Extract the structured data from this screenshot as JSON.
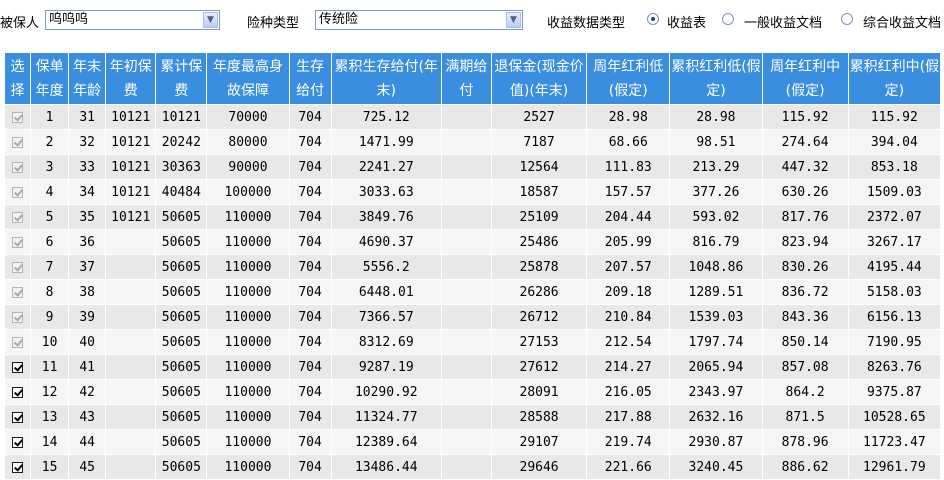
{
  "filters": {
    "insured_label": "被保人",
    "insured_value": "呜呜呜",
    "insurance_type_label": "险种类型",
    "insurance_type_value": "传统险",
    "data_type_label": "收益数据类型",
    "options": [
      {
        "label": "收益表",
        "checked": true
      },
      {
        "label": "一般收益文档",
        "checked": false
      },
      {
        "label": "综合收益文档",
        "checked": false
      }
    ]
  },
  "table": {
    "headers": [
      "选择",
      "保单年度",
      "年末年龄",
      "年初保费",
      "累计保费",
      "年度最高身故保障",
      "生存给付",
      "累积生存给付(年末)",
      "满期给付",
      "退保金(现金价值)(年末)",
      "周年红利低(假定)",
      "累积红利低(假定)",
      "周年红利中(假定)",
      "累积红利中(假定)"
    ],
    "rows": [
      {
        "enabled": false,
        "cells": [
          "1",
          "31",
          "10121",
          "10121",
          "70000",
          "704",
          "725.12",
          "",
          "2527",
          "28.98",
          "28.98",
          "115.92",
          "115.92"
        ]
      },
      {
        "enabled": false,
        "cells": [
          "2",
          "32",
          "10121",
          "20242",
          "80000",
          "704",
          "1471.99",
          "",
          "7187",
          "68.66",
          "98.51",
          "274.64",
          "394.04"
        ]
      },
      {
        "enabled": false,
        "cells": [
          "3",
          "33",
          "10121",
          "30363",
          "90000",
          "704",
          "2241.27",
          "",
          "12564",
          "111.83",
          "213.29",
          "447.32",
          "853.18"
        ]
      },
      {
        "enabled": false,
        "cells": [
          "4",
          "34",
          "10121",
          "40484",
          "100000",
          "704",
          "3033.63",
          "",
          "18587",
          "157.57",
          "377.26",
          "630.26",
          "1509.03"
        ]
      },
      {
        "enabled": false,
        "cells": [
          "5",
          "35",
          "10121",
          "50605",
          "110000",
          "704",
          "3849.76",
          "",
          "25109",
          "204.44",
          "593.02",
          "817.76",
          "2372.07"
        ]
      },
      {
        "enabled": false,
        "cells": [
          "6",
          "36",
          "",
          "50605",
          "110000",
          "704",
          "4690.37",
          "",
          "25486",
          "205.99",
          "816.79",
          "823.94",
          "3267.17"
        ]
      },
      {
        "enabled": false,
        "cells": [
          "7",
          "37",
          "",
          "50605",
          "110000",
          "704",
          "5556.2",
          "",
          "25878",
          "207.57",
          "1048.86",
          "830.26",
          "4195.44"
        ]
      },
      {
        "enabled": false,
        "cells": [
          "8",
          "38",
          "",
          "50605",
          "110000",
          "704",
          "6448.01",
          "",
          "26286",
          "209.18",
          "1289.51",
          "836.72",
          "5158.03"
        ]
      },
      {
        "enabled": false,
        "cells": [
          "9",
          "39",
          "",
          "50605",
          "110000",
          "704",
          "7366.57",
          "",
          "26712",
          "210.84",
          "1539.03",
          "843.36",
          "6156.13"
        ]
      },
      {
        "enabled": false,
        "cells": [
          "10",
          "40",
          "",
          "50605",
          "110000",
          "704",
          "8312.69",
          "",
          "27153",
          "212.54",
          "1797.74",
          "850.14",
          "7190.95"
        ]
      },
      {
        "enabled": true,
        "cells": [
          "11",
          "41",
          "",
          "50605",
          "110000",
          "704",
          "9287.19",
          "",
          "27612",
          "214.27",
          "2065.94",
          "857.08",
          "8263.76"
        ]
      },
      {
        "enabled": true,
        "cells": [
          "12",
          "42",
          "",
          "50605",
          "110000",
          "704",
          "10290.92",
          "",
          "28091",
          "216.05",
          "2343.97",
          "864.2",
          "9375.87"
        ]
      },
      {
        "enabled": true,
        "cells": [
          "13",
          "43",
          "",
          "50605",
          "110000",
          "704",
          "11324.77",
          "",
          "28588",
          "217.88",
          "2632.16",
          "871.5",
          "10528.65"
        ]
      },
      {
        "enabled": true,
        "cells": [
          "14",
          "44",
          "",
          "50605",
          "110000",
          "704",
          "12389.64",
          "",
          "29107",
          "219.74",
          "2930.87",
          "878.96",
          "11723.47"
        ]
      },
      {
        "enabled": true,
        "cells": [
          "15",
          "45",
          "",
          "50605",
          "110000",
          "704",
          "13486.44",
          "",
          "29646",
          "221.66",
          "3240.45",
          "886.62",
          "12961.79"
        ]
      }
    ]
  }
}
